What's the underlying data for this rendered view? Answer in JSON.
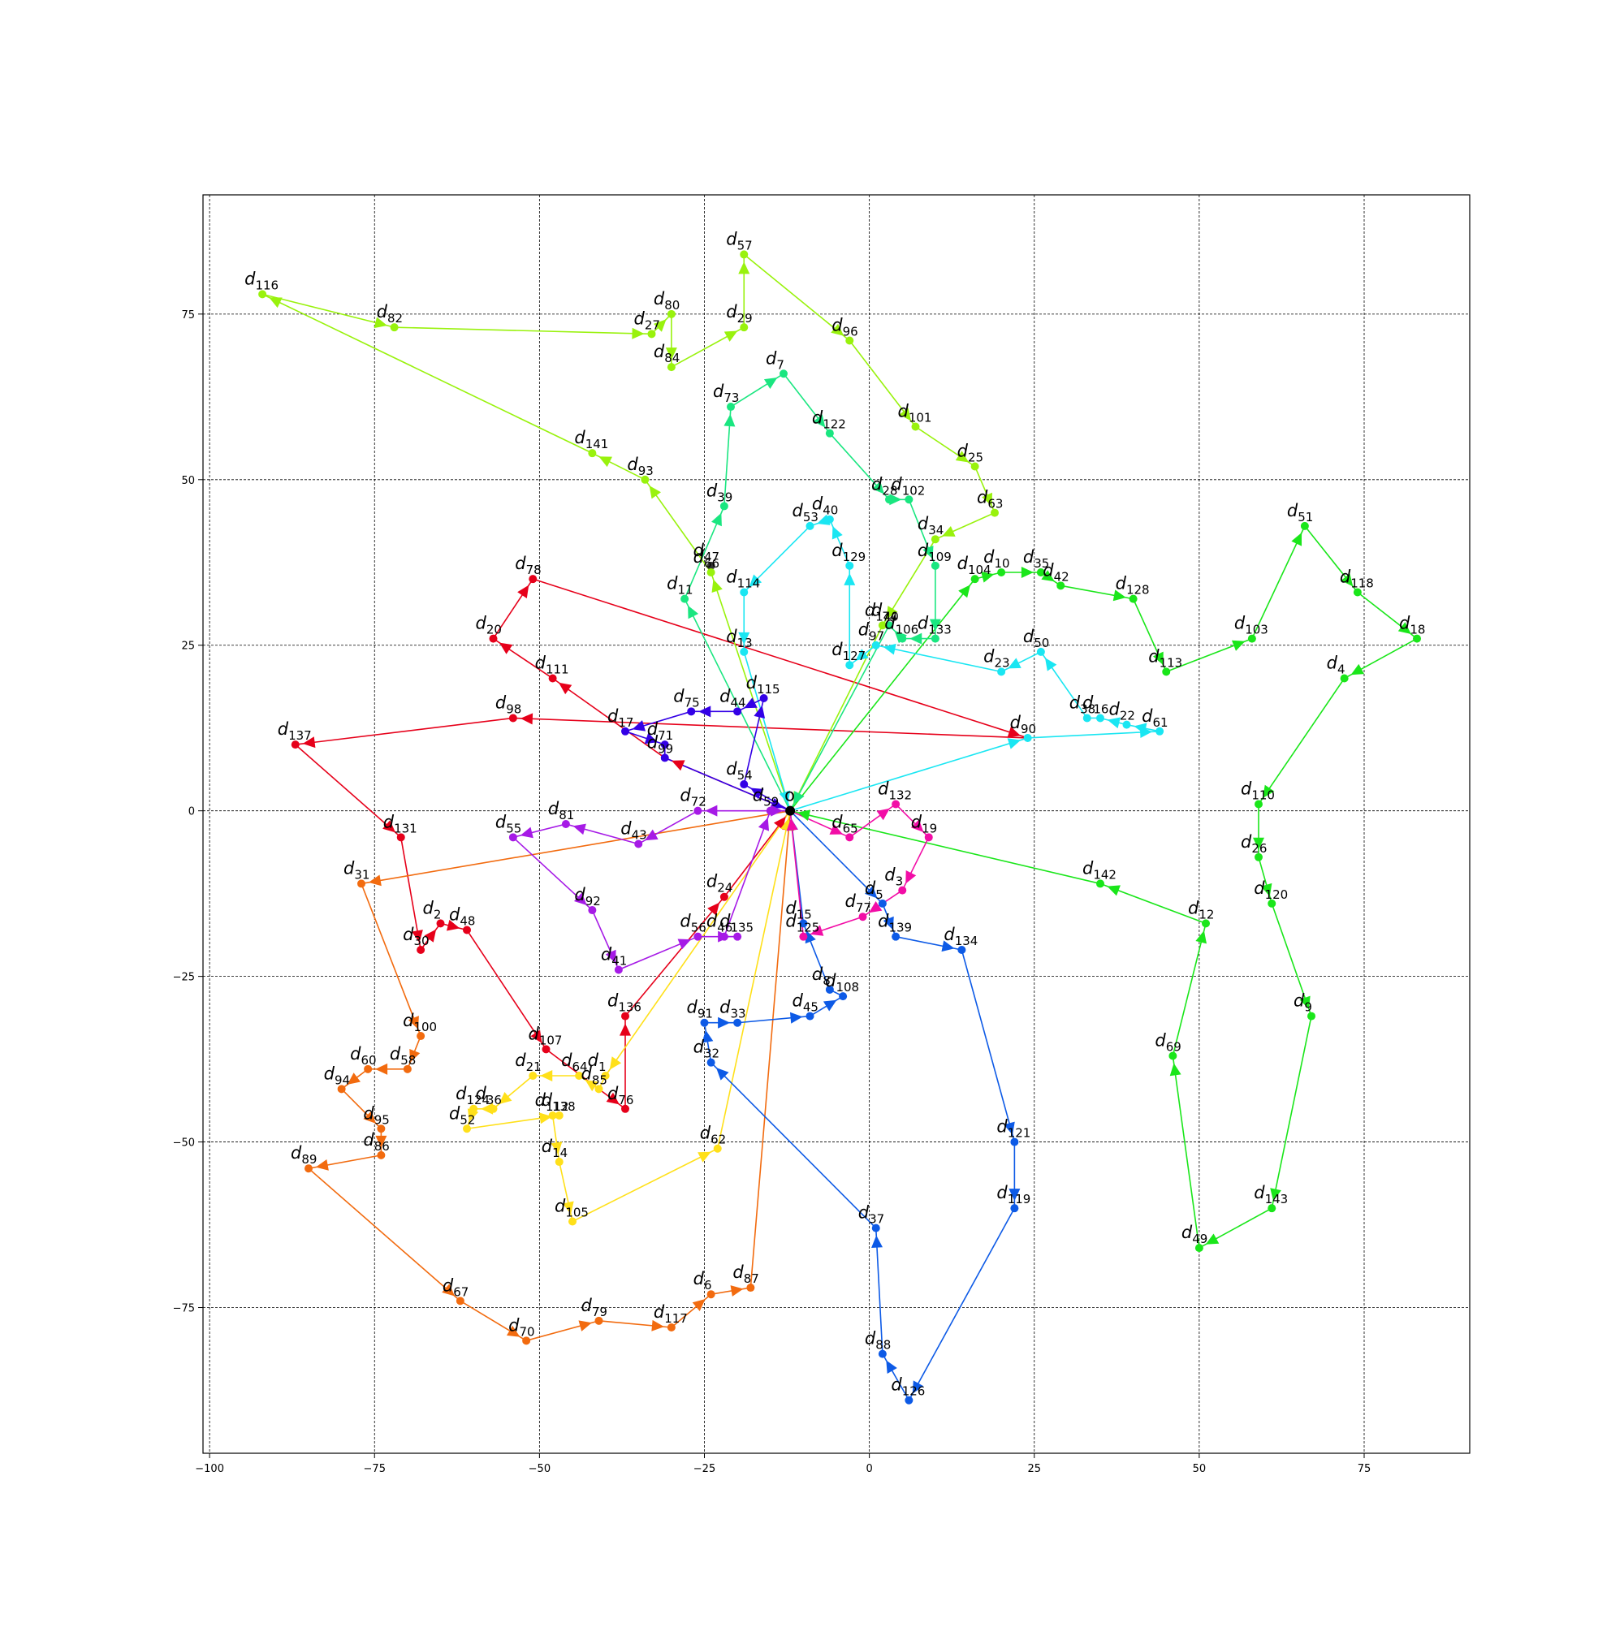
{
  "chart_data": {
    "type": "line",
    "subtype": "directed-route-graph",
    "title": "",
    "xlabel": "",
    "ylabel": "",
    "xlim": [
      -101,
      91
    ],
    "ylim": [
      -97,
      93
    ],
    "grid": true,
    "x_ticks": [
      -100,
      -75,
      -50,
      -25,
      0,
      25,
      50,
      75
    ],
    "y_ticks": [
      -75,
      -50,
      -25,
      0,
      25,
      50,
      75
    ],
    "x_tick_labels": [
      "−100",
      "−75",
      "−50",
      "−25",
      "0",
      "25",
      "50",
      "75"
    ],
    "y_tick_labels": [
      "−75",
      "−50",
      "−25",
      "0",
      "25",
      "50",
      "75"
    ],
    "depot": {
      "label": "o",
      "x": -12,
      "y": 0
    },
    "nodes": {
      "1": [
        -40,
        -40
      ],
      "2": [
        -65,
        -17
      ],
      "3": [
        5,
        -12
      ],
      "4": [
        72,
        20
      ],
      "5": [
        2,
        -14
      ],
      "6": [
        -24,
        -73
      ],
      "7": [
        -13,
        66
      ],
      "8": [
        -6,
        -27
      ],
      "9": [
        67,
        -31
      ],
      "10": [
        20,
        36
      ],
      "11": [
        -28,
        32
      ],
      "12": [
        51,
        -17
      ],
      "13": [
        -19,
        24
      ],
      "14": [
        -47,
        -53
      ],
      "15": [
        -10,
        -17
      ],
      "16": [
        35,
        14
      ],
      "17": [
        -37,
        12
      ],
      "18": [
        83,
        26
      ],
      "19": [
        9,
        -4
      ],
      "20": [
        -57,
        26
      ],
      "21": [
        -51,
        -40
      ],
      "22": [
        39,
        13
      ],
      "23": [
        20,
        21
      ],
      "24": [
        -22,
        -13
      ],
      "25": [
        16,
        52
      ],
      "26": [
        59,
        -7
      ],
      "27": [
        -33,
        72
      ],
      "28": [
        3,
        47
      ],
      "29": [
        -19,
        73
      ],
      "30": [
        -68,
        -21
      ],
      "31": [
        -77,
        -11
      ],
      "32": [
        -24,
        -38
      ],
      "33": [
        -20,
        -32
      ],
      "34": [
        10,
        41
      ],
      "35": [
        26,
        36
      ],
      "36": [
        -57,
        -45
      ],
      "37": [
        1,
        -63
      ],
      "38": [
        33,
        14
      ],
      "39": [
        -22,
        46
      ],
      "40": [
        -6,
        44
      ],
      "41": [
        -38,
        -24
      ],
      "42": [
        29,
        34
      ],
      "43": [
        -35,
        -5
      ],
      "44": [
        -20,
        15
      ],
      "45": [
        -9,
        -31
      ],
      "46": [
        -22,
        -19
      ],
      "47": [
        -24,
        37
      ],
      "48": [
        -61,
        -18
      ],
      "49": [
        50,
        -66
      ],
      "50": [
        26,
        24
      ],
      "51": [
        66,
        43
      ],
      "52": [
        -61,
        -48
      ],
      "53": [
        -9,
        43
      ],
      "54": [
        -19,
        4
      ],
      "55": [
        -54,
        -4
      ],
      "56": [
        -26,
        -19
      ],
      "57": [
        -19,
        84
      ],
      "58": [
        -70,
        -39
      ],
      "59": [
        -15,
        0
      ],
      "60": [
        -76,
        -39
      ],
      "61": [
        44,
        12
      ],
      "62": [
        -23,
        -51
      ],
      "63": [
        19,
        45
      ],
      "64": [
        -44,
        -40
      ],
      "65": [
        -3,
        -4
      ],
      "66": [
        -24,
        36
      ],
      "67": [
        -62,
        -74
      ],
      "69": [
        46,
        -37
      ],
      "70": [
        -52,
        -80
      ],
      "71": [
        -31,
        10
      ],
      "72": [
        -26,
        0
      ],
      "73": [
        -21,
        61
      ],
      "74": [
        3,
        28
      ],
      "75": [
        -27,
        15
      ],
      "76": [
        -37,
        -45
      ],
      "77": [
        -1,
        -16
      ],
      "78": [
        -51,
        35
      ],
      "79": [
        -41,
        -77
      ],
      "80": [
        -30,
        75
      ],
      "81": [
        -46,
        -2
      ],
      "82": [
        -72,
        73
      ],
      "84": [
        -30,
        67
      ],
      "85": [
        -41,
        -42
      ],
      "86": [
        -74,
        -52
      ],
      "87": [
        -18,
        -72
      ],
      "88": [
        2,
        -82
      ],
      "89": [
        -85,
        -54
      ],
      "90": [
        24,
        11
      ],
      "91": [
        -25,
        -32
      ],
      "92": [
        -42,
        -15
      ],
      "93": [
        -34,
        50
      ],
      "94": [
        -80,
        -42
      ],
      "95": [
        -74,
        -48
      ],
      "96": [
        -3,
        71
      ],
      "97": [
        1,
        25
      ],
      "98": [
        -54,
        14
      ],
      "99": [
        -31,
        8
      ],
      "100": [
        -68,
        -34
      ],
      "101": [
        7,
        58
      ],
      "102": [
        6,
        47
      ],
      "103": [
        58,
        26
      ],
      "104": [
        16,
        35
      ],
      "105": [
        -45,
        -62
      ],
      "106": [
        5,
        26
      ],
      "107": [
        -49,
        -36
      ],
      "108": [
        -4,
        -28
      ],
      "109": [
        10,
        37
      ],
      "110": [
        59,
        1
      ],
      "111": [
        -48,
        20
      ],
      "112": [
        -48,
        -46
      ],
      "113": [
        45,
        21
      ],
      "114": [
        -19,
        33
      ],
      "115": [
        -16,
        17
      ],
      "116": [
        -92,
        78
      ],
      "117": [
        -30,
        -78
      ],
      "118": [
        74,
        33
      ],
      "119": [
        22,
        -60
      ],
      "120": [
        61,
        -14
      ],
      "121": [
        22,
        -50
      ],
      "122": [
        -6,
        57
      ],
      "124": [
        -60,
        -45
      ],
      "125": [
        -10,
        -19
      ],
      "126": [
        6,
        -89
      ],
      "127": [
        -3,
        22
      ],
      "128": [
        40,
        32
      ],
      "129": [
        -3,
        37
      ],
      "131": [
        -71,
        -4
      ],
      "132": [
        4,
        1
      ],
      "133": [
        10,
        26
      ],
      "134": [
        14,
        -21
      ],
      "135": [
        -20,
        -19
      ],
      "136": [
        -37,
        -31
      ],
      "137": [
        -87,
        10
      ],
      "138": [
        -47,
        -46
      ],
      "139": [
        4,
        -19
      ],
      "140": [
        2,
        28
      ],
      "141": [
        -42,
        54
      ],
      "142": [
        35,
        -11
      ],
      "143": [
        61,
        -60
      ]
    },
    "series": [
      {
        "color": "#e6001a",
        "route": [
          "o",
          99,
          17,
          98,
          137,
          131,
          30,
          2,
          48,
          107,
          76,
          136,
          24,
          "o"
        ],
        "route_extra": [
          111,
          20,
          78,
          90
        ],
        "full_route": [
          "o",
          99,
          111,
          20,
          78,
          90,
          98,
          137,
          131,
          30,
          2,
          48,
          107,
          76,
          136,
          24,
          "o"
        ]
      },
      {
        "color": "#f26b0f",
        "route": [
          "o",
          31,
          100,
          58,
          60,
          94,
          95,
          86,
          89,
          67,
          70,
          79,
          117,
          6,
          87,
          "o"
        ]
      },
      {
        "color": "#ffe01a",
        "route": [
          "o",
          1,
          85,
          64,
          21,
          36,
          124,
          52,
          138,
          112,
          14,
          105,
          62,
          "o"
        ]
      },
      {
        "color": "#99f20d",
        "route": [
          "o",
          66,
          93,
          141,
          116,
          82,
          27,
          80,
          84,
          29,
          57,
          96,
          101,
          25,
          63,
          34,
          140,
          "o"
        ]
      },
      {
        "color": "#1ae61a",
        "route": [
          "o",
          104,
          10,
          35,
          42,
          128,
          113,
          103,
          51,
          118,
          18,
          4,
          110,
          26,
          120,
          9,
          143,
          49,
          69,
          12,
          142,
          "o"
        ]
      },
      {
        "color": "#1ae680",
        "route": [
          "o",
          11,
          39,
          73,
          7,
          122,
          28,
          102,
          109,
          133,
          106,
          74,
          "o"
        ]
      },
      {
        "color": "#1ae6f2",
        "route": [
          "o",
          90,
          61,
          22,
          16,
          38,
          50,
          23,
          97,
          127,
          129,
          40,
          53,
          114,
          13,
          "o"
        ]
      },
      {
        "color": "#0d5ae6",
        "route": [
          "o",
          5,
          139,
          134,
          121,
          119,
          126,
          88,
          37,
          32,
          91,
          33,
          45,
          108,
          8,
          15,
          "o"
        ]
      },
      {
        "color": "#3300e6",
        "route": [
          "o",
          54,
          115,
          44,
          75,
          17,
          71,
          99,
          "o"
        ]
      },
      {
        "color": "#a61ae6",
        "route": [
          "o",
          72,
          43,
          81,
          55,
          92,
          41,
          56,
          135,
          46,
          59,
          "o"
        ]
      },
      {
        "color": "#f20da6",
        "route": [
          "o",
          65,
          132,
          19,
          3,
          77,
          125,
          "o"
        ]
      }
    ]
  }
}
